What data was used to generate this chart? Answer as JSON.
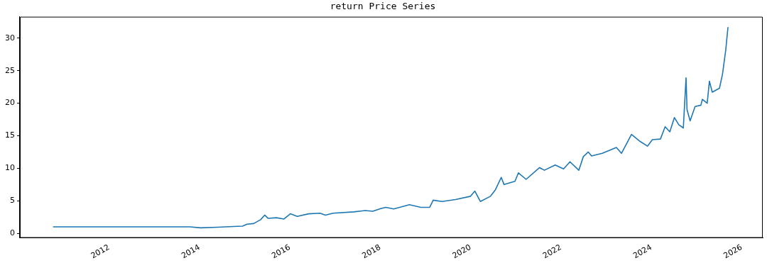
{
  "chart_data": {
    "type": "line",
    "title": "return Price Series",
    "x": [
      "2010-10-05",
      "2011-06-01",
      "2012-06-01",
      "2013-06-01",
      "2013-10-15",
      "2014-01-10",
      "2014-06-01",
      "2014-10-01",
      "2014-12-15",
      "2015-01-20",
      "2015-03-15",
      "2015-05-10",
      "2015-06-12",
      "2015-07-10",
      "2015-09-15",
      "2015-11-15",
      "2016-01-05",
      "2016-03-01",
      "2016-06-01",
      "2016-09-01",
      "2016-10-15",
      "2016-12-15",
      "2017-06-01",
      "2017-09-01",
      "2017-11-01",
      "2018-01-05",
      "2018-02-15",
      "2018-04-20",
      "2018-08-25",
      "2018-11-25",
      "2019-02-05",
      "2019-03-05",
      "2019-05-15",
      "2019-09-01",
      "2020-01-01",
      "2020-02-05",
      "2020-03-20",
      "2020-06-10",
      "2020-07-20",
      "2020-09-05",
      "2020-09-28",
      "2020-12-25",
      "2021-01-22",
      "2021-03-25",
      "2021-07-12",
      "2021-08-20",
      "2021-11-15",
      "2022-01-22",
      "2022-03-15",
      "2022-05-25",
      "2022-07-01",
      "2022-08-10",
      "2022-09-05",
      "2022-12-01",
      "2023-02-15",
      "2023-03-25",
      "2023-05-05",
      "2023-07-25",
      "2023-10-05",
      "2023-12-01",
      "2024-01-10",
      "2024-03-15",
      "2024-04-22",
      "2024-05-30",
      "2024-07-06",
      "2024-08-10",
      "2024-09-16",
      "2024-10-08",
      "2024-10-16",
      "2024-11-10",
      "2024-12-20",
      "2025-02-05",
      "2025-02-17",
      "2025-03-28",
      "2025-04-15",
      "2025-05-08",
      "2025-07-05",
      "2025-07-30",
      "2025-08-25",
      "2025-09-12"
    ],
    "series": [
      {
        "color": "#1f77b4",
        "values": [
          1.0,
          1.0,
          1.0,
          1.0,
          1.0,
          0.85,
          0.95,
          1.05,
          1.1,
          1.4,
          1.5,
          2.1,
          2.8,
          2.3,
          2.4,
          2.2,
          3.0,
          2.6,
          3.0,
          3.1,
          2.8,
          3.1,
          3.3,
          3.5,
          3.4,
          3.8,
          4.0,
          3.75,
          4.4,
          4.0,
          4.0,
          5.1,
          4.9,
          5.2,
          5.7,
          6.5,
          4.9,
          5.7,
          6.7,
          8.6,
          7.5,
          8.0,
          9.3,
          8.3,
          10.1,
          9.7,
          10.5,
          9.9,
          11.0,
          9.7,
          11.8,
          12.5,
          11.9,
          12.3,
          12.9,
          13.2,
          12.3,
          15.2,
          14.1,
          13.4,
          14.4,
          14.5,
          16.4,
          15.6,
          17.8,
          16.7,
          16.2,
          23.9,
          19.0,
          17.3,
          19.5,
          19.7,
          20.6,
          20.0,
          23.4,
          21.7,
          22.3,
          24.5,
          28.2,
          31.7
        ]
      }
    ],
    "xlim": [
      "2010-01-10",
      "2026-06-20"
    ],
    "xticks": [
      {
        "value": "2012-01-01",
        "label": "2012"
      },
      {
        "value": "2014-01-01",
        "label": "2014"
      },
      {
        "value": "2016-01-01",
        "label": "2016"
      },
      {
        "value": "2018-01-01",
        "label": "2018"
      },
      {
        "value": "2020-01-01",
        "label": "2020"
      },
      {
        "value": "2022-01-01",
        "label": "2022"
      },
      {
        "value": "2024-01-01",
        "label": "2024"
      },
      {
        "value": "2026-01-01",
        "label": "2026"
      }
    ],
    "ylim": [
      -0.7,
      33.3
    ],
    "yticks": [
      0,
      5,
      10,
      15,
      20,
      25,
      30
    ],
    "grid": false,
    "legend": false,
    "line_style": "solid",
    "marker": "none"
  }
}
